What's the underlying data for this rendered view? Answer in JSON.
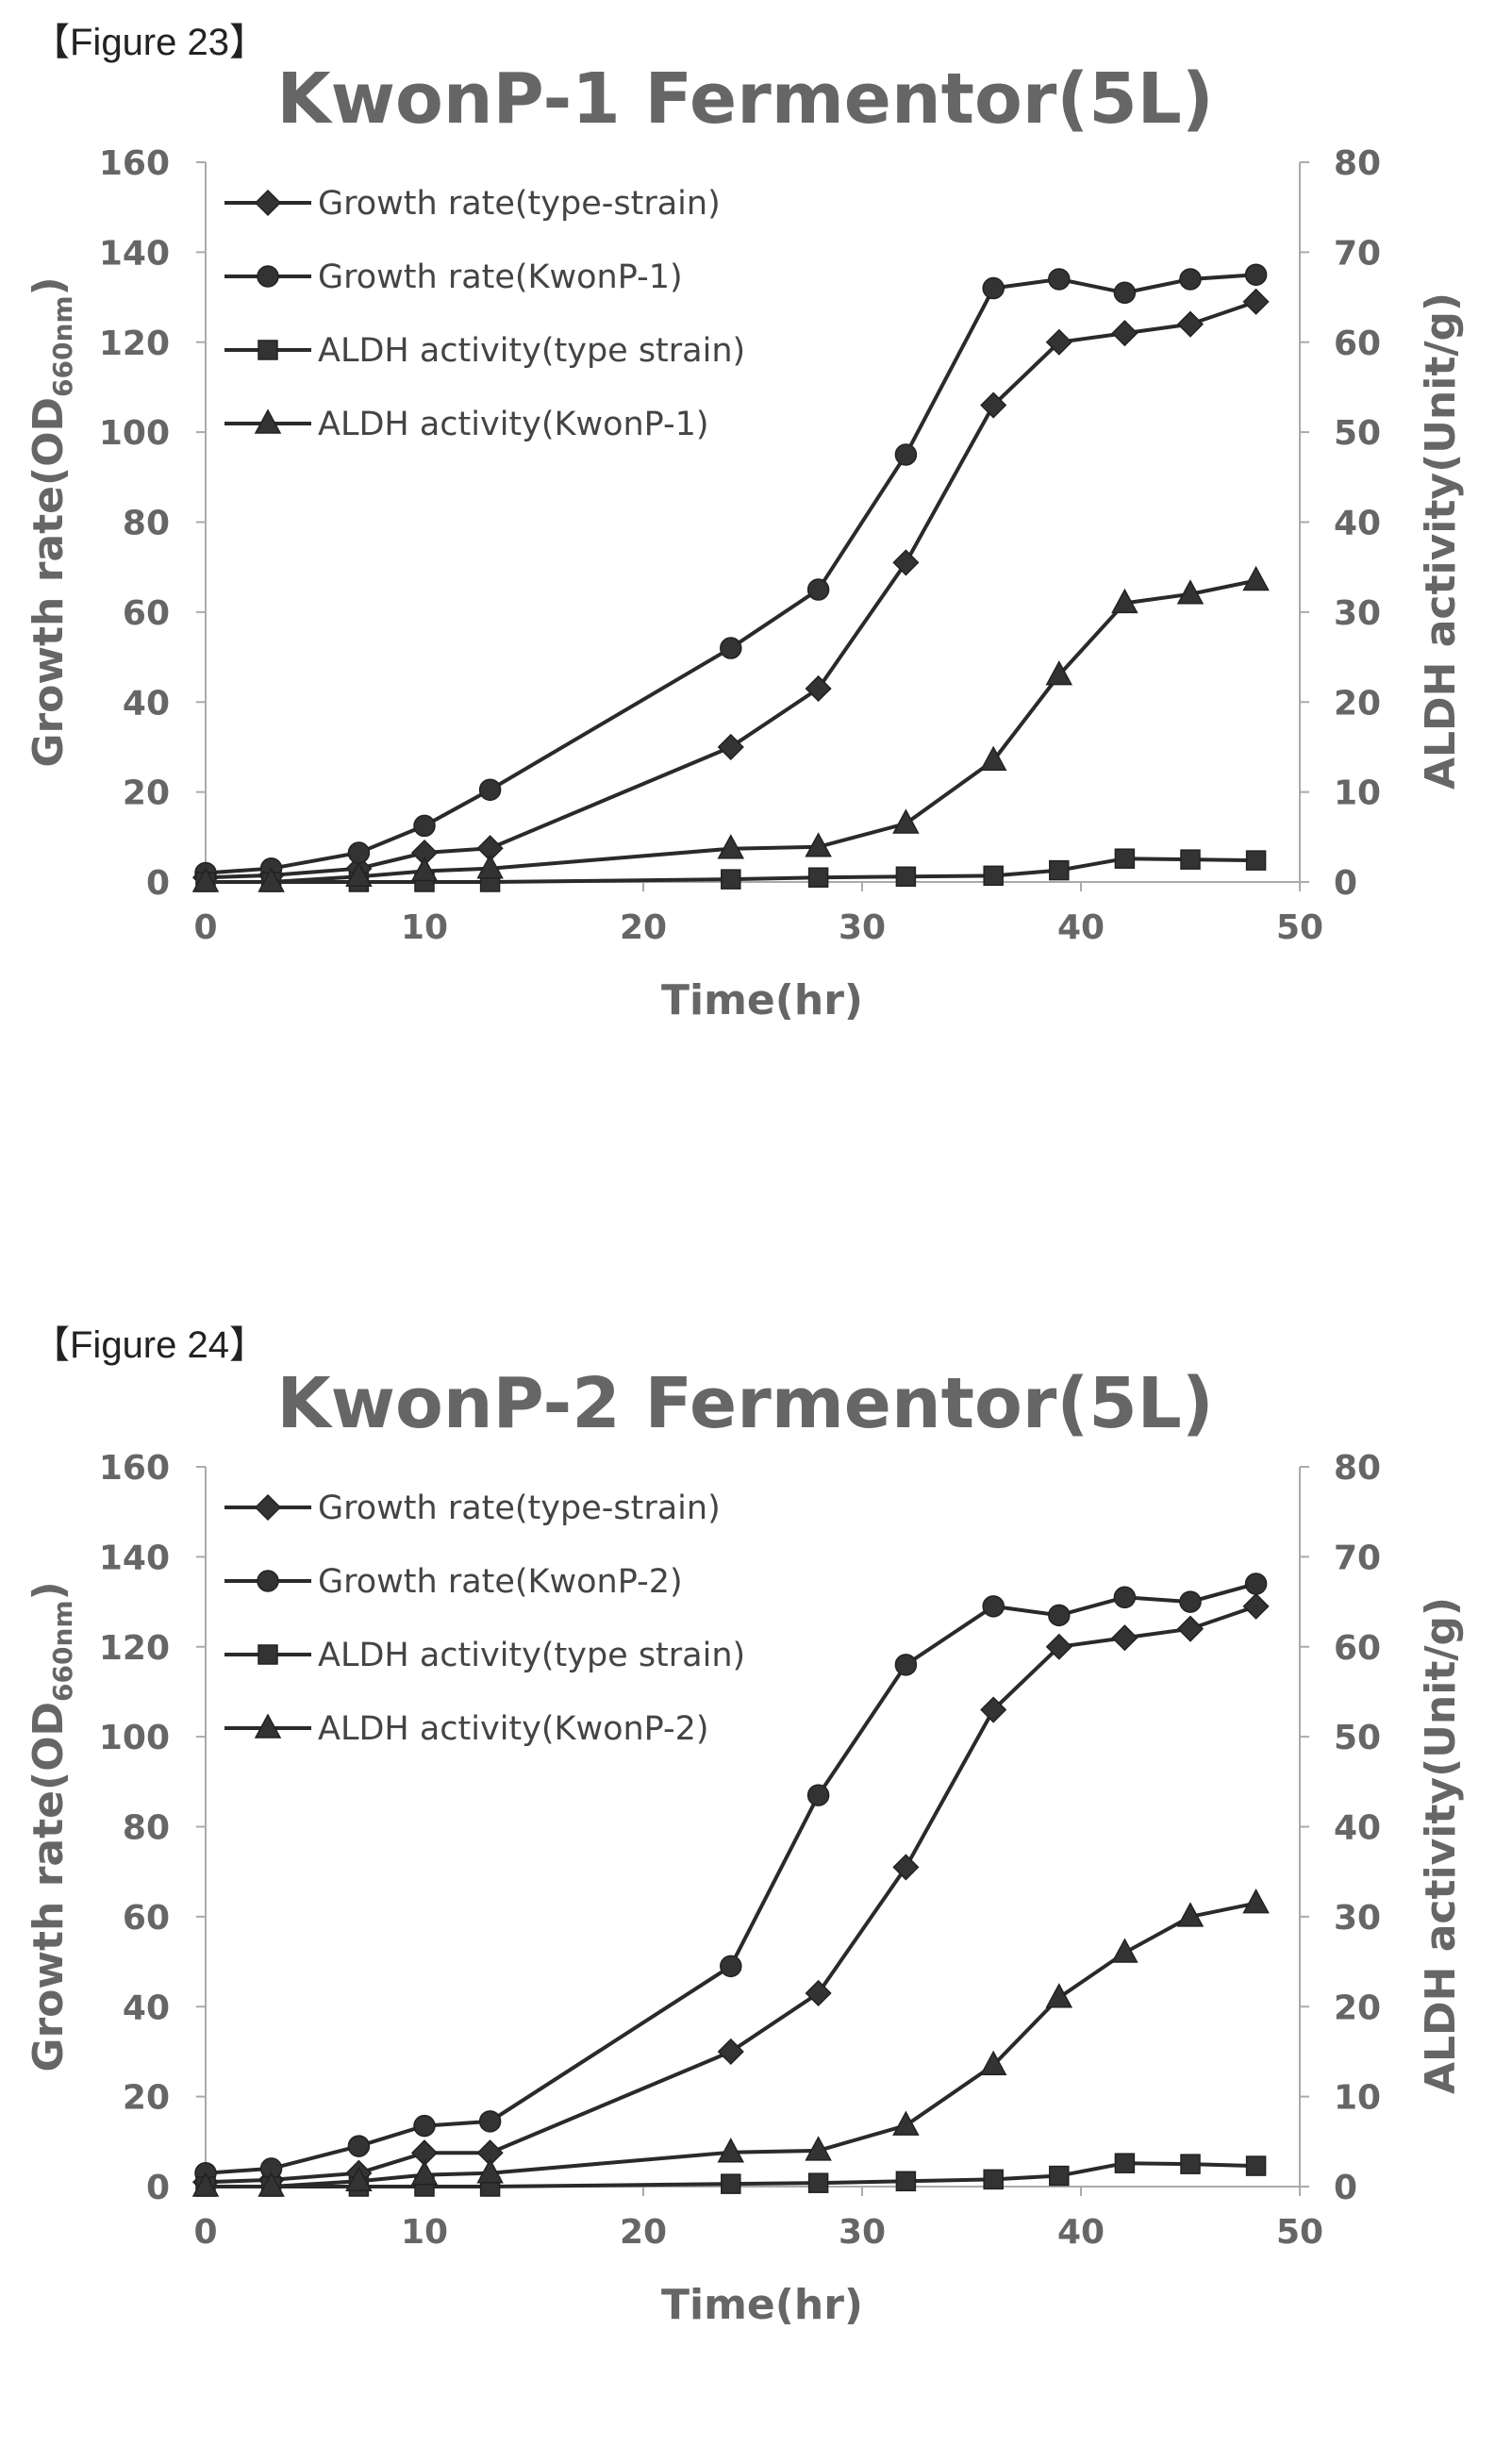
{
  "figures": [
    {
      "label": "【Figure 23】"
    },
    {
      "label": "【Figure 24】"
    }
  ],
  "chart_data": [
    {
      "type": "line",
      "title": "KwonP-1 Fermentor(5L)",
      "xlabel": "Time(hr)",
      "ylabel": "Growth rate(OD660nm)",
      "ylabel_main": "Growth rate(OD",
      "ylabel_sub": "660nm",
      "ylabel_close": ")",
      "y2label": "ALDH activity(Unit/g)",
      "xlim": [
        0,
        50
      ],
      "xticks": [
        0,
        10,
        20,
        30,
        40,
        50
      ],
      "ylim": [
        0,
        160
      ],
      "yticks": [
        0,
        20,
        40,
        60,
        80,
        100,
        120,
        140,
        160
      ],
      "y2lim": [
        0,
        80
      ],
      "y2ticks": [
        0,
        10,
        20,
        30,
        40,
        50,
        60,
        70,
        80
      ],
      "grid": false,
      "legend_position": "top-left",
      "x": [
        0,
        3,
        7,
        10,
        13,
        24,
        28,
        32,
        36,
        39,
        42,
        45,
        48
      ],
      "series": [
        {
          "name": "Growth rate(type-strain)",
          "axis": "left",
          "marker": "diamond",
          "values": [
            1,
            1.5,
            3,
            6.5,
            7.5,
            30,
            43,
            71,
            106,
            120,
            122,
            124,
            129
          ]
        },
        {
          "name": "Growth rate(KwonP-1)",
          "axis": "left",
          "marker": "circle",
          "values": [
            2,
            3,
            6.5,
            12.5,
            20.5,
            52,
            65,
            95,
            132,
            134,
            131,
            134,
            135
          ]
        },
        {
          "name": "ALDH activity(type strain)",
          "axis": "right",
          "marker": "square",
          "values": [
            0,
            0,
            0,
            0,
            0,
            0.3,
            0.5,
            0.6,
            0.7,
            1.3,
            2.6,
            2.5,
            2.4
          ]
        },
        {
          "name": "ALDH activity(KwonP-1)",
          "axis": "right",
          "marker": "triangle",
          "values": [
            0,
            0,
            0.6,
            1.2,
            1.5,
            3.7,
            3.9,
            6.5,
            13.5,
            23,
            31,
            32,
            33.5
          ]
        }
      ]
    },
    {
      "type": "line",
      "title": "KwonP-2 Fermentor(5L)",
      "xlabel": "Time(hr)",
      "ylabel": "Growth rate(OD660nm)",
      "ylabel_main": "Growth rate(OD",
      "ylabel_sub": "660nm",
      "ylabel_close": ")",
      "y2label": "ALDH activity(Unit/g)",
      "xlim": [
        0,
        50
      ],
      "xticks": [
        0,
        10,
        20,
        30,
        40,
        50
      ],
      "ylim": [
        0,
        160
      ],
      "yticks": [
        0,
        20,
        40,
        60,
        80,
        100,
        120,
        140,
        160
      ],
      "y2lim": [
        0,
        80
      ],
      "y2ticks": [
        0,
        10,
        20,
        30,
        40,
        50,
        60,
        70,
        80
      ],
      "grid": false,
      "legend_position": "top-left",
      "x": [
        0,
        3,
        7,
        10,
        13,
        24,
        28,
        32,
        36,
        39,
        42,
        45,
        48
      ],
      "series": [
        {
          "name": "Growth rate(type-strain)",
          "axis": "left",
          "marker": "diamond",
          "values": [
            1,
            1.5,
            3,
            7.5,
            7.5,
            30,
            43,
            71,
            106,
            120,
            122,
            124,
            129
          ]
        },
        {
          "name": "Growth rate(KwonP-2)",
          "axis": "left",
          "marker": "circle",
          "values": [
            3,
            4,
            9,
            13.5,
            14.5,
            49,
            87,
            116,
            129,
            127,
            131,
            130,
            134
          ]
        },
        {
          "name": "ALDH activity(type strain)",
          "axis": "right",
          "marker": "square",
          "values": [
            0,
            0,
            0,
            0,
            0,
            0.3,
            0.4,
            0.6,
            0.8,
            1.2,
            2.6,
            2.5,
            2.3
          ]
        },
        {
          "name": "ALDH activity(KwonP-2)",
          "axis": "right",
          "marker": "triangle",
          "values": [
            0,
            0,
            0.6,
            1.3,
            1.5,
            3.8,
            4,
            6.8,
            13.5,
            21,
            26,
            30,
            31.5
          ]
        }
      ]
    }
  ]
}
